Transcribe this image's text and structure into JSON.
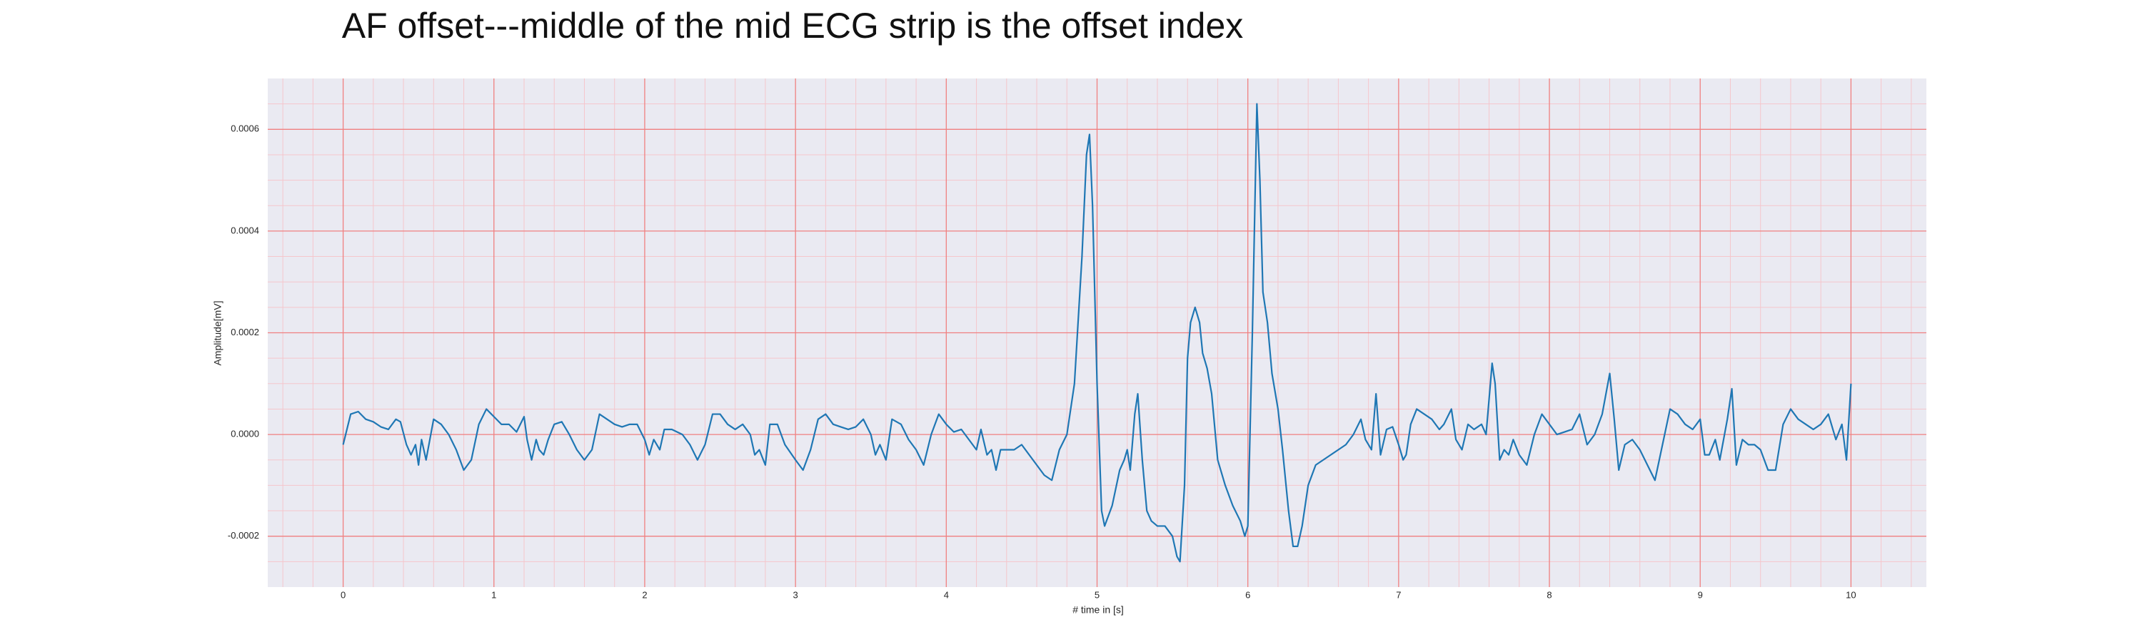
{
  "chart_data": {
    "type": "line",
    "title": "AF offset---middle of the mid ECG strip is the offset index",
    "xlabel": "# time in [s]",
    "ylabel": "Amplitude[mV]",
    "xlim": [
      -0.5,
      10.5
    ],
    "ylim": [
      -0.0003,
      0.0007
    ],
    "xticks": [
      0,
      1,
      2,
      3,
      4,
      5,
      6,
      7,
      8,
      9,
      10
    ],
    "yticks": [
      {
        "value": -0.0002,
        "label": "-0.0002"
      },
      {
        "value": 0,
        "label": "0.0000"
      },
      {
        "value": 0.0002,
        "label": "0.0002"
      },
      {
        "value": 0.0004,
        "label": "0.0004"
      },
      {
        "value": 0.0006,
        "label": "0.0006"
      }
    ],
    "xminor": [
      -0.4,
      -0.2,
      0.2,
      0.4,
      0.6,
      0.8,
      1.2,
      1.4,
      1.6,
      1.8,
      2.2,
      2.4,
      2.6,
      2.8,
      3.2,
      3.4,
      3.6,
      3.8,
      4.2,
      4.4,
      4.6,
      4.8,
      5.2,
      5.4,
      5.6,
      5.8,
      6.2,
      6.4,
      6.6,
      6.8,
      7.2,
      7.4,
      7.6,
      7.8,
      8.2,
      8.4,
      8.6,
      8.8,
      9.2,
      9.4,
      9.6,
      9.8,
      10.2,
      10.4
    ],
    "yminor": [
      -0.00025,
      -0.00015,
      -0.0001,
      -5e-05,
      5e-05,
      0.0001,
      0.00015,
      0.00025,
      0.0003,
      0.00035,
      0.00045,
      0.0005,
      0.00055,
      0.00065
    ],
    "grid": true,
    "grid_color": "#f08080",
    "minor_grid_color": "#f5c6cc",
    "background": "#eaeaf2",
    "x": [
      0,
      0.05,
      0.1,
      0.15,
      0.2,
      0.25,
      0.3,
      0.35,
      0.38,
      0.42,
      0.45,
      0.48,
      0.5,
      0.52,
      0.55,
      0.6,
      0.65,
      0.7,
      0.75,
      0.8,
      0.85,
      0.9,
      0.95,
      1.0,
      1.05,
      1.1,
      1.15,
      1.2,
      1.22,
      1.25,
      1.28,
      1.3,
      1.33,
      1.36,
      1.4,
      1.45,
      1.5,
      1.55,
      1.6,
      1.65,
      1.7,
      1.75,
      1.8,
      1.85,
      1.9,
      1.95,
      2.0,
      2.03,
      2.06,
      2.1,
      2.13,
      2.18,
      2.25,
      2.3,
      2.35,
      2.4,
      2.45,
      2.5,
      2.55,
      2.6,
      2.65,
      2.7,
      2.73,
      2.76,
      2.8,
      2.83,
      2.88,
      2.93,
      3.0,
      3.05,
      3.1,
      3.15,
      3.2,
      3.25,
      3.3,
      3.35,
      3.4,
      3.45,
      3.5,
      3.53,
      3.56,
      3.6,
      3.64,
      3.7,
      3.75,
      3.8,
      3.85,
      3.9,
      3.95,
      4.0,
      4.05,
      4.1,
      4.15,
      4.2,
      4.23,
      4.27,
      4.3,
      4.33,
      4.36,
      4.4,
      4.45,
      4.5,
      4.55,
      4.6,
      4.65,
      4.7,
      4.75,
      4.8,
      4.85,
      4.9,
      4.93,
      4.95,
      4.97,
      5.0,
      5.03,
      5.05,
      5.1,
      5.15,
      5.18,
      5.2,
      5.22,
      5.25,
      5.27,
      5.3,
      5.33,
      5.36,
      5.4,
      5.45,
      5.5,
      5.53,
      5.55,
      5.58,
      5.6,
      5.62,
      5.65,
      5.68,
      5.7,
      5.73,
      5.76,
      5.8,
      5.85,
      5.9,
      5.95,
      5.98,
      6.0,
      6.03,
      6.06,
      6.08,
      6.1,
      6.13,
      6.16,
      6.2,
      6.23,
      6.27,
      6.3,
      6.33,
      6.36,
      6.4,
      6.45,
      6.5,
      6.55,
      6.6,
      6.65,
      6.7,
      6.75,
      6.78,
      6.82,
      6.85,
      6.88,
      6.92,
      6.96,
      7.0,
      7.03,
      7.05,
      7.08,
      7.12,
      7.17,
      7.22,
      7.27,
      7.3,
      7.35,
      7.38,
      7.42,
      7.46,
      7.5,
      7.55,
      7.58,
      7.62,
      7.64,
      7.67,
      7.7,
      7.73,
      7.76,
      7.8,
      7.85,
      7.9,
      7.95,
      8.0,
      8.05,
      8.1,
      8.15,
      8.2,
      8.25,
      8.3,
      8.35,
      8.4,
      8.43,
      8.46,
      8.5,
      8.55,
      8.6,
      8.65,
      8.7,
      8.75,
      8.8,
      8.85,
      8.9,
      8.95,
      9.0,
      9.03,
      9.06,
      9.1,
      9.13,
      9.18,
      9.21,
      9.24,
      9.28,
      9.32,
      9.36,
      9.4,
      9.45,
      9.5,
      9.55,
      9.6,
      9.65,
      9.7,
      9.75,
      9.8,
      9.85,
      9.9,
      9.94,
      9.97,
      10.0
    ],
    "series": [
      {
        "color": "#1f77b4",
        "values": [
          -2e-05,
          4e-05,
          4.5e-05,
          3e-05,
          2.5e-05,
          1.5e-05,
          1e-05,
          3e-05,
          2.5e-05,
          -2e-05,
          -4e-05,
          -2e-05,
          -6e-05,
          -1e-05,
          -5e-05,
          3e-05,
          2e-05,
          0,
          -3e-05,
          -7e-05,
          -5e-05,
          2e-05,
          5e-05,
          3.5e-05,
          2e-05,
          2e-05,
          5e-06,
          3.5e-05,
          -1e-05,
          -5e-05,
          -1e-05,
          -3e-05,
          -4e-05,
          -1e-05,
          2e-05,
          2.5e-05,
          0,
          -3e-05,
          -5e-05,
          -3e-05,
          4e-05,
          3e-05,
          2e-05,
          1.5e-05,
          2e-05,
          2e-05,
          -1e-05,
          -4e-05,
          -1e-05,
          -3e-05,
          1e-05,
          1e-05,
          0,
          -2e-05,
          -5e-05,
          -2e-05,
          4e-05,
          4e-05,
          2e-05,
          1e-05,
          2e-05,
          0,
          -4e-05,
          -3e-05,
          -6e-05,
          2e-05,
          2e-05,
          -2e-05,
          -5e-05,
          -7e-05,
          -3e-05,
          3e-05,
          4e-05,
          2e-05,
          1.5e-05,
          1e-05,
          1.5e-05,
          3e-05,
          0,
          -4e-05,
          -2e-05,
          -5e-05,
          3e-05,
          2e-05,
          -1e-05,
          -3e-05,
          -6e-05,
          0,
          4e-05,
          2e-05,
          5e-06,
          1e-05,
          -1e-05,
          -3e-05,
          1e-05,
          -4e-05,
          -3e-05,
          -7e-05,
          -3e-05,
          -3e-05,
          -3e-05,
          -2e-05,
          -4e-05,
          -6e-05,
          -8e-05,
          -9e-05,
          -3e-05,
          0,
          0.0001,
          0.00035,
          0.00055,
          0.00059,
          0.00045,
          0.0001,
          -0.00015,
          -0.00018,
          -0.00014,
          -7e-05,
          -5e-05,
          -3e-05,
          -7e-05,
          4e-05,
          8e-05,
          -5e-05,
          -0.00015,
          -0.00017,
          -0.00018,
          -0.00018,
          -0.0002,
          -0.00024,
          -0.00025,
          -0.0001,
          0.00015,
          0.00022,
          0.00025,
          0.00022,
          0.00016,
          0.00013,
          8e-05,
          -5e-05,
          -0.0001,
          -0.00014,
          -0.00017,
          -0.0002,
          -0.00018,
          0.0002,
          0.00065,
          0.0005,
          0.00028,
          0.00022,
          0.00012,
          5e-05,
          -3e-05,
          -0.00015,
          -0.00022,
          -0.00022,
          -0.00018,
          -0.0001,
          -6e-05,
          -5e-05,
          -4e-05,
          -3e-05,
          -2e-05,
          0,
          3e-05,
          -1e-05,
          -3e-05,
          8e-05,
          -4e-05,
          1e-05,
          1.5e-05,
          -2e-05,
          -5e-05,
          -4e-05,
          2e-05,
          5e-05,
          4e-05,
          3e-05,
          1e-05,
          2e-05,
          5e-05,
          -1e-05,
          -3e-05,
          2e-05,
          1e-05,
          2e-05,
          0,
          0.00014,
          0.0001,
          -5e-05,
          -3e-05,
          -4e-05,
          -1e-05,
          -4e-05,
          -6e-05,
          0,
          4e-05,
          2e-05,
          0,
          5e-06,
          1e-05,
          4e-05,
          -2e-05,
          0,
          4e-05,
          0.00012,
          3e-05,
          -7e-05,
          -2e-05,
          -1e-05,
          -3e-05,
          -6e-05,
          -9e-05,
          -2e-05,
          5e-05,
          4e-05,
          2e-05,
          1e-05,
          3e-05,
          -4e-05,
          -4e-05,
          -1e-05,
          -5e-05,
          3e-05,
          9e-05,
          -6e-05,
          -1e-05,
          -2e-05,
          -2e-05,
          -3e-05,
          -7e-05,
          -7e-05,
          2e-05,
          5e-05,
          3e-05,
          2e-05,
          1e-05,
          2e-05,
          4e-05,
          -1e-05,
          2e-05,
          -5e-05,
          0.0001
        ]
      }
    ]
  }
}
